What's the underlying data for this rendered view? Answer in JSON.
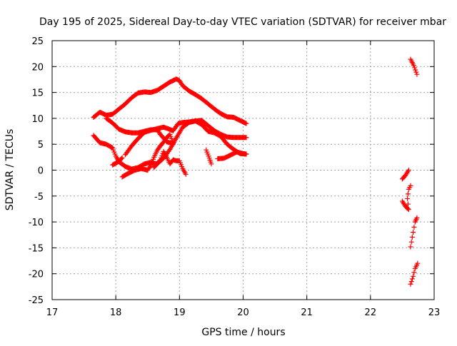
{
  "chart_data": {
    "type": "scatter",
    "title": "Day 195 of 2025, Sidereal Day-to-day VTEC variation (SDTVAR) for receiver mbar",
    "xlabel": "GPS time / hours",
    "ylabel": "SDTVAR / TECUs",
    "xlim": [
      17,
      23
    ],
    "ylim": [
      -25,
      25
    ],
    "xticks": [
      "17",
      "18",
      "19",
      "20",
      "21",
      "22",
      "23"
    ],
    "yticks": [
      "25",
      "20",
      "15",
      "10",
      "5",
      "0",
      "-5",
      "-10",
      "-15",
      "-20",
      "-25"
    ],
    "grid": true,
    "marker": "plus",
    "color": "#ff0000",
    "series": [
      {
        "points": [
          [
            17.65,
            10.2
          ],
          [
            17.75,
            11.2
          ],
          [
            17.85,
            10.6
          ],
          [
            17.95,
            10.8
          ],
          [
            18.05,
            11.8
          ],
          [
            18.15,
            12.8
          ],
          [
            18.25,
            14.0
          ],
          [
            18.35,
            14.9
          ],
          [
            18.45,
            15.1
          ],
          [
            18.55,
            15.0
          ],
          [
            18.65,
            15.4
          ],
          [
            18.75,
            16.2
          ],
          [
            18.85,
            17.0
          ],
          [
            18.95,
            17.6
          ],
          [
            19.0,
            17.3
          ],
          [
            19.05,
            16.3
          ],
          [
            19.15,
            15.3
          ],
          [
            19.25,
            14.6
          ],
          [
            19.35,
            13.8
          ],
          [
            19.45,
            12.8
          ],
          [
            19.55,
            11.8
          ],
          [
            19.65,
            10.9
          ],
          [
            19.75,
            10.3
          ],
          [
            19.85,
            10.2
          ],
          [
            19.95,
            9.6
          ],
          [
            20.05,
            9.0
          ]
        ]
      },
      {
        "points": [
          [
            17.65,
            6.7
          ],
          [
            17.75,
            5.3
          ],
          [
            17.85,
            5.0
          ],
          [
            17.95,
            4.3
          ],
          [
            18.0,
            2.7
          ],
          [
            18.05,
            1.6
          ],
          [
            18.15,
            0.7
          ],
          [
            18.25,
            0.2
          ],
          [
            18.35,
            0.5
          ],
          [
            18.45,
            1.2
          ],
          [
            18.55,
            1.5
          ],
          [
            18.65,
            1.2
          ],
          [
            18.75,
            2.3
          ],
          [
            18.85,
            4.0
          ],
          [
            18.95,
            6.2
          ],
          [
            19.05,
            8.3
          ],
          [
            19.15,
            9.2
          ],
          [
            19.25,
            9.5
          ],
          [
            19.35,
            9.6
          ],
          [
            19.45,
            8.6
          ],
          [
            19.55,
            7.6
          ],
          [
            19.65,
            6.9
          ],
          [
            19.75,
            6.4
          ],
          [
            19.85,
            6.3
          ],
          [
            19.95,
            6.3
          ],
          [
            20.05,
            6.3
          ]
        ]
      },
      {
        "points": [
          [
            17.85,
            10.0
          ],
          [
            17.95,
            9.1
          ],
          [
            18.05,
            7.9
          ],
          [
            18.15,
            7.4
          ],
          [
            18.25,
            7.2
          ],
          [
            18.35,
            7.2
          ],
          [
            18.45,
            7.5
          ],
          [
            18.55,
            7.8
          ],
          [
            18.65,
            7.8
          ],
          [
            18.7,
            6.9
          ],
          [
            18.8,
            5.5
          ],
          [
            18.9,
            5.0
          ]
        ]
      },
      {
        "points": [
          [
            18.15,
            3.0
          ],
          [
            18.25,
            4.7
          ],
          [
            18.35,
            6.1
          ],
          [
            18.45,
            7.3
          ],
          [
            18.55,
            7.7
          ],
          [
            18.65,
            8.0
          ],
          [
            18.75,
            8.3
          ],
          [
            18.82,
            8.0
          ],
          [
            18.9,
            7.6
          ],
          [
            18.98,
            9.0
          ],
          [
            19.05,
            9.2
          ],
          [
            19.15,
            9.3
          ],
          [
            19.25,
            9.5
          ],
          [
            19.35,
            8.8
          ],
          [
            19.45,
            7.5
          ],
          [
            19.55,
            7.2
          ],
          [
            19.65,
            6.5
          ],
          [
            19.75,
            5.0
          ],
          [
            19.85,
            4.0
          ],
          [
            19.95,
            3.2
          ],
          [
            20.05,
            3.1
          ]
        ]
      },
      {
        "points": [
          [
            17.95,
            1.0
          ],
          [
            18.05,
            1.7
          ],
          [
            18.1,
            2.4
          ]
        ]
      },
      {
        "points": [
          [
            18.1,
            -1.3
          ],
          [
            18.2,
            -0.6
          ],
          [
            18.3,
            0.0
          ],
          [
            18.4,
            0.3
          ],
          [
            18.5,
            0.0
          ],
          [
            18.55,
            0.9
          ],
          [
            18.6,
            2.5
          ],
          [
            18.65,
            3.8
          ],
          [
            18.7,
            4.7
          ],
          [
            18.75,
            5.4
          ],
          [
            18.8,
            6.3
          ],
          [
            18.85,
            6.9
          ],
          [
            18.9,
            5.3
          ]
        ]
      },
      {
        "points": [
          [
            18.6,
            0.5
          ],
          [
            18.7,
            2.0
          ],
          [
            18.75,
            3.6
          ],
          [
            18.8,
            2.5
          ],
          [
            18.85,
            1.2
          ],
          [
            18.9,
            2.0
          ],
          [
            18.95,
            1.8
          ],
          [
            19.0,
            1.8
          ],
          [
            19.05,
            0.3
          ],
          [
            19.1,
            -0.8
          ]
        ]
      },
      {
        "points": [
          [
            19.42,
            3.9
          ],
          [
            19.47,
            2.3
          ],
          [
            19.5,
            1.2
          ]
        ]
      },
      {
        "points": [
          [
            19.6,
            2.2
          ],
          [
            19.7,
            2.3
          ],
          [
            19.8,
            2.9
          ],
          [
            19.9,
            3.5
          ],
          [
            20.0,
            3.2
          ],
          [
            20.05,
            3.1
          ]
        ]
      },
      {
        "points": [
          [
            22.63,
            21.4
          ],
          [
            22.68,
            20.2
          ],
          [
            22.73,
            18.5
          ]
        ]
      },
      {
        "points": [
          [
            22.5,
            -1.7
          ],
          [
            22.55,
            -1.0
          ],
          [
            22.6,
            0.0
          ]
        ]
      },
      {
        "points": [
          [
            22.5,
            -6.0
          ],
          [
            22.55,
            -7.0
          ],
          [
            22.6,
            -7.6
          ],
          [
            22.58,
            -5.5
          ],
          [
            22.6,
            -3.7
          ],
          [
            22.63,
            -3.0
          ]
        ]
      },
      {
        "points": [
          [
            22.63,
            -14.8
          ],
          [
            22.67,
            -12.0
          ],
          [
            22.7,
            -10.0
          ],
          [
            22.73,
            -9.2
          ]
        ]
      },
      {
        "points": [
          [
            22.63,
            -22.0
          ],
          [
            22.67,
            -20.5
          ],
          [
            22.7,
            -19.0
          ],
          [
            22.74,
            -18.0
          ]
        ]
      }
    ]
  }
}
